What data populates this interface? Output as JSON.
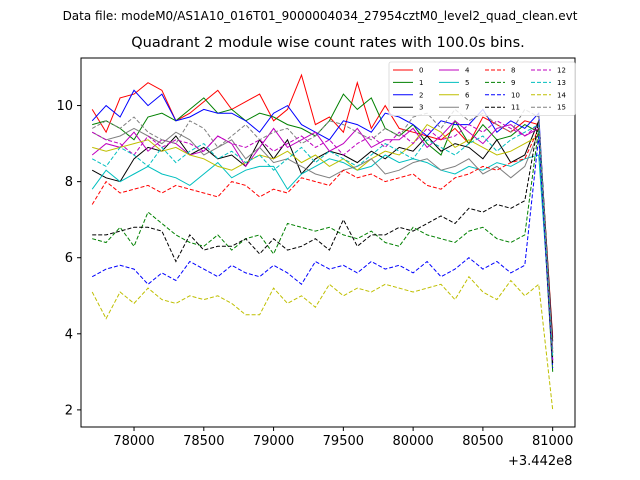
{
  "suptitle": "Data file: modeM0/AS1A10_016T01_9000004034_27954cztM0_level2_quad_clean.evt",
  "chart_data": {
    "type": "line",
    "title": "Quadrant 2 module wise count rates with 100.0s bins.",
    "xlabel": "",
    "ylabel": "",
    "x_offset_label": "+3.442e8",
    "xlim": [
      77620,
      81160
    ],
    "ylim": [
      1.55,
      11.25
    ],
    "xticks": [
      78000,
      78500,
      79000,
      79500,
      80000,
      80500,
      81000
    ],
    "xtick_labels": [
      "78000",
      "78500",
      "79000",
      "79500",
      "80000",
      "80500",
      "81000"
    ],
    "yticks": [
      2,
      4,
      6,
      8,
      10
    ],
    "ytick_labels": [
      "2",
      "4",
      "6",
      "8",
      "10"
    ],
    "grid": false,
    "legend_position": "top-right",
    "legend_columns": 4,
    "x": [
      77700,
      77800,
      77900,
      78000,
      78100,
      78200,
      78300,
      78400,
      78500,
      78600,
      78700,
      78800,
      78900,
      79000,
      79100,
      79200,
      79300,
      79400,
      79500,
      79600,
      79700,
      79800,
      79900,
      80000,
      80100,
      80200,
      80300,
      80400,
      80500,
      80600,
      80700,
      80800,
      80900,
      81000
    ],
    "series": [
      {
        "name": "0",
        "color": "#ff0000",
        "dash": "solid",
        "values": [
          9.9,
          9.3,
          10.2,
          10.3,
          10.6,
          10.4,
          9.6,
          9.8,
          10.1,
          10.4,
          9.9,
          10.1,
          10.3,
          9.6,
          9.9,
          10.8,
          9.5,
          9.7,
          9.3,
          10.6,
          9.4,
          10.0,
          9.4,
          9.3,
          9.2,
          9.1,
          9.4,
          9.0,
          9.7,
          9.5,
          9.3,
          9.6,
          9.5,
          3.9
        ]
      },
      {
        "name": "1",
        "color": "#008000",
        "dash": "solid",
        "values": [
          9.5,
          9.6,
          9.4,
          9.1,
          9.7,
          9.8,
          9.6,
          9.9,
          10.2,
          9.8,
          9.9,
          9.6,
          9.8,
          9.7,
          9.5,
          9.4,
          9.2,
          9.6,
          10.3,
          9.9,
          10.2,
          9.4,
          9.2,
          9.5,
          9.0,
          8.7,
          9.6,
          9.0,
          9.5,
          9.1,
          9.2,
          9.5,
          9.3,
          3.0
        ]
      },
      {
        "name": "2",
        "color": "#0000ff",
        "dash": "solid",
        "values": [
          9.6,
          10.0,
          9.7,
          10.4,
          10.0,
          10.3,
          9.6,
          9.7,
          9.9,
          9.8,
          9.8,
          9.6,
          9.3,
          9.8,
          10.0,
          9.5,
          9.3,
          9.1,
          9.6,
          9.5,
          9.3,
          9.8,
          9.7,
          9.5,
          9.2,
          9.6,
          9.5,
          9.5,
          9.9,
          9.3,
          9.6,
          9.4,
          9.8,
          3.3
        ]
      },
      {
        "name": "3",
        "color": "#000000",
        "dash": "solid",
        "values": [
          8.3,
          8.1,
          8.0,
          8.6,
          8.9,
          8.8,
          9.2,
          8.7,
          8.9,
          8.6,
          8.7,
          8.4,
          9.1,
          8.6,
          9.1,
          8.2,
          8.6,
          8.8,
          8.7,
          8.5,
          8.8,
          8.6,
          8.9,
          8.8,
          9.2,
          8.8,
          9.0,
          8.9,
          8.6,
          9.1,
          8.5,
          8.7,
          9.6,
          3.8
        ]
      },
      {
        "name": "4",
        "color": "#bf00bf",
        "dash": "solid",
        "values": [
          8.7,
          9.0,
          8.9,
          9.3,
          8.8,
          9.1,
          9.0,
          8.7,
          8.8,
          9.2,
          9.0,
          8.4,
          8.9,
          9.4,
          8.9,
          9.1,
          9.3,
          8.8,
          9.0,
          9.4,
          8.9,
          9.1,
          9.1,
          9.4,
          8.9,
          9.2,
          9.6,
          9.3,
          9.0,
          9.4,
          9.5,
          9.2,
          9.4,
          3.6
        ]
      },
      {
        "name": "5",
        "color": "#00bfbf",
        "dash": "solid",
        "values": [
          7.8,
          8.3,
          8.0,
          8.2,
          8.4,
          8.2,
          8.1,
          7.9,
          8.2,
          8.5,
          8.1,
          8.3,
          8.4,
          8.4,
          7.8,
          8.2,
          8.4,
          8.6,
          8.5,
          8.3,
          8.4,
          8.7,
          8.5,
          8.6,
          8.5,
          8.3,
          8.2,
          8.4,
          8.3,
          8.5,
          8.4,
          8.6,
          8.7,
          3.5
        ]
      },
      {
        "name": "6",
        "color": "#bfbf00",
        "dash": "solid",
        "values": [
          8.9,
          8.8,
          8.9,
          9.0,
          9.1,
          8.8,
          8.9,
          8.7,
          8.6,
          8.4,
          8.3,
          8.5,
          8.7,
          8.6,
          8.8,
          8.5,
          8.7,
          8.4,
          8.6,
          8.3,
          8.6,
          8.8,
          8.7,
          9.0,
          9.5,
          9.3,
          8.9,
          9.1,
          8.9,
          8.7,
          8.8,
          9.0,
          9.2,
          3.4
        ]
      },
      {
        "name": "7",
        "color": "#808080",
        "dash": "solid",
        "values": [
          9.3,
          9.1,
          9.2,
          9.4,
          9.2,
          9.0,
          9.3,
          9.1,
          8.7,
          8.9,
          9.1,
          8.6,
          8.9,
          8.5,
          8.6,
          8.4,
          8.2,
          8.1,
          8.3,
          8.4,
          8.6,
          8.2,
          8.3,
          8.5,
          8.6,
          8.3,
          8.4,
          8.6,
          8.2,
          8.4,
          8.1,
          8.4,
          9.3,
          3.5
        ]
      },
      {
        "name": "8",
        "color": "#ff0000",
        "dash": "dashed",
        "values": [
          7.4,
          8.0,
          7.7,
          7.8,
          7.9,
          7.7,
          7.9,
          7.8,
          7.7,
          7.6,
          8.0,
          7.9,
          7.6,
          7.8,
          7.7,
          8.1,
          8.0,
          7.9,
          8.3,
          8.1,
          8.2,
          8.0,
          8.1,
          8.2,
          7.9,
          7.8,
          8.1,
          8.2,
          8.4,
          8.3,
          8.5,
          8.6,
          9.4,
          3.2
        ]
      },
      {
        "name": "9",
        "color": "#008000",
        "dash": "dashed",
        "values": [
          6.5,
          6.4,
          6.8,
          6.3,
          7.2,
          6.9,
          6.6,
          6.4,
          6.3,
          6.6,
          6.2,
          6.5,
          6.6,
          6.1,
          6.9,
          6.8,
          6.7,
          6.8,
          6.6,
          6.5,
          6.7,
          6.4,
          6.3,
          6.8,
          6.6,
          6.5,
          6.4,
          6.7,
          6.8,
          6.5,
          6.4,
          6.6,
          9.4,
          3.2
        ]
      },
      {
        "name": "10",
        "color": "#0000ff",
        "dash": "dashed",
        "values": [
          5.5,
          5.7,
          5.8,
          5.7,
          5.3,
          5.6,
          5.4,
          5.9,
          5.7,
          5.5,
          5.8,
          5.6,
          5.5,
          5.8,
          5.6,
          5.3,
          5.9,
          5.7,
          5.8,
          5.6,
          5.9,
          5.7,
          5.8,
          5.6,
          5.9,
          5.5,
          5.7,
          6.0,
          5.7,
          5.9,
          5.6,
          5.8,
          9.2,
          3.1
        ]
      },
      {
        "name": "11",
        "color": "#000000",
        "dash": "dashed",
        "values": [
          6.6,
          6.6,
          6.7,
          6.8,
          6.8,
          6.7,
          5.9,
          6.6,
          6.2,
          6.3,
          6.3,
          6.5,
          6.1,
          6.5,
          6.2,
          6.3,
          6.5,
          6.2,
          7.0,
          6.3,
          6.6,
          6.6,
          6.8,
          6.7,
          6.9,
          7.1,
          6.9,
          7.3,
          7.2,
          7.4,
          7.3,
          7.5,
          9.6,
          3.2
        ]
      },
      {
        "name": "12",
        "color": "#bf00bf",
        "dash": "dashed",
        "values": [
          9.3,
          9.1,
          9.0,
          8.7,
          9.2,
          8.9,
          9.1,
          9.0,
          8.8,
          9.2,
          9.0,
          8.9,
          9.1,
          8.8,
          9.0,
          9.2,
          8.9,
          9.1,
          8.7,
          9.0,
          9.2,
          8.9,
          9.3,
          9.0,
          9.4,
          9.1,
          9.2,
          9.5,
          9.3,
          9.6,
          9.4,
          9.2,
          9.5,
          3.3
        ]
      },
      {
        "name": "13",
        "color": "#00bfbf",
        "dash": "dashed",
        "values": [
          8.6,
          8.4,
          8.9,
          8.7,
          8.4,
          8.9,
          8.5,
          8.8,
          9.0,
          8.6,
          8.8,
          8.5,
          8.7,
          8.3,
          8.6,
          8.9,
          8.5,
          8.8,
          8.6,
          8.4,
          8.7,
          9.0,
          8.8,
          8.6,
          9.1,
          8.9,
          8.7,
          9.0,
          9.2,
          8.8,
          9.1,
          9.3,
          9.5,
          3.4
        ]
      },
      {
        "name": "14",
        "color": "#bfbf00",
        "dash": "dashed",
        "values": [
          5.1,
          4.4,
          5.1,
          4.8,
          5.2,
          4.9,
          4.8,
          5.0,
          4.9,
          5.0,
          4.8,
          4.5,
          4.5,
          5.2,
          4.8,
          5.0,
          4.7,
          5.3,
          5.0,
          5.2,
          5.1,
          5.3,
          5.2,
          5.1,
          5.2,
          5.3,
          4.9,
          5.5,
          5.1,
          4.9,
          5.4,
          5.0,
          5.3,
          2.0
        ]
      },
      {
        "name": "15",
        "color": "#808080",
        "dash": "dashed",
        "values": [
          9.4,
          9.6,
          9.4,
          9.7,
          9.3,
          9.1,
          9.0,
          9.6,
          9.4,
          8.9,
          9.2,
          9.5,
          9.1,
          9.3,
          9.4,
          9.0,
          9.2,
          9.6,
          9.5,
          9.3,
          9.1,
          9.4,
          9.2,
          9.7,
          9.8,
          9.4,
          9.9,
          9.6,
          9.8,
          9.5,
          9.3,
          9.9,
          9.7,
          3.5
        ]
      }
    ]
  }
}
